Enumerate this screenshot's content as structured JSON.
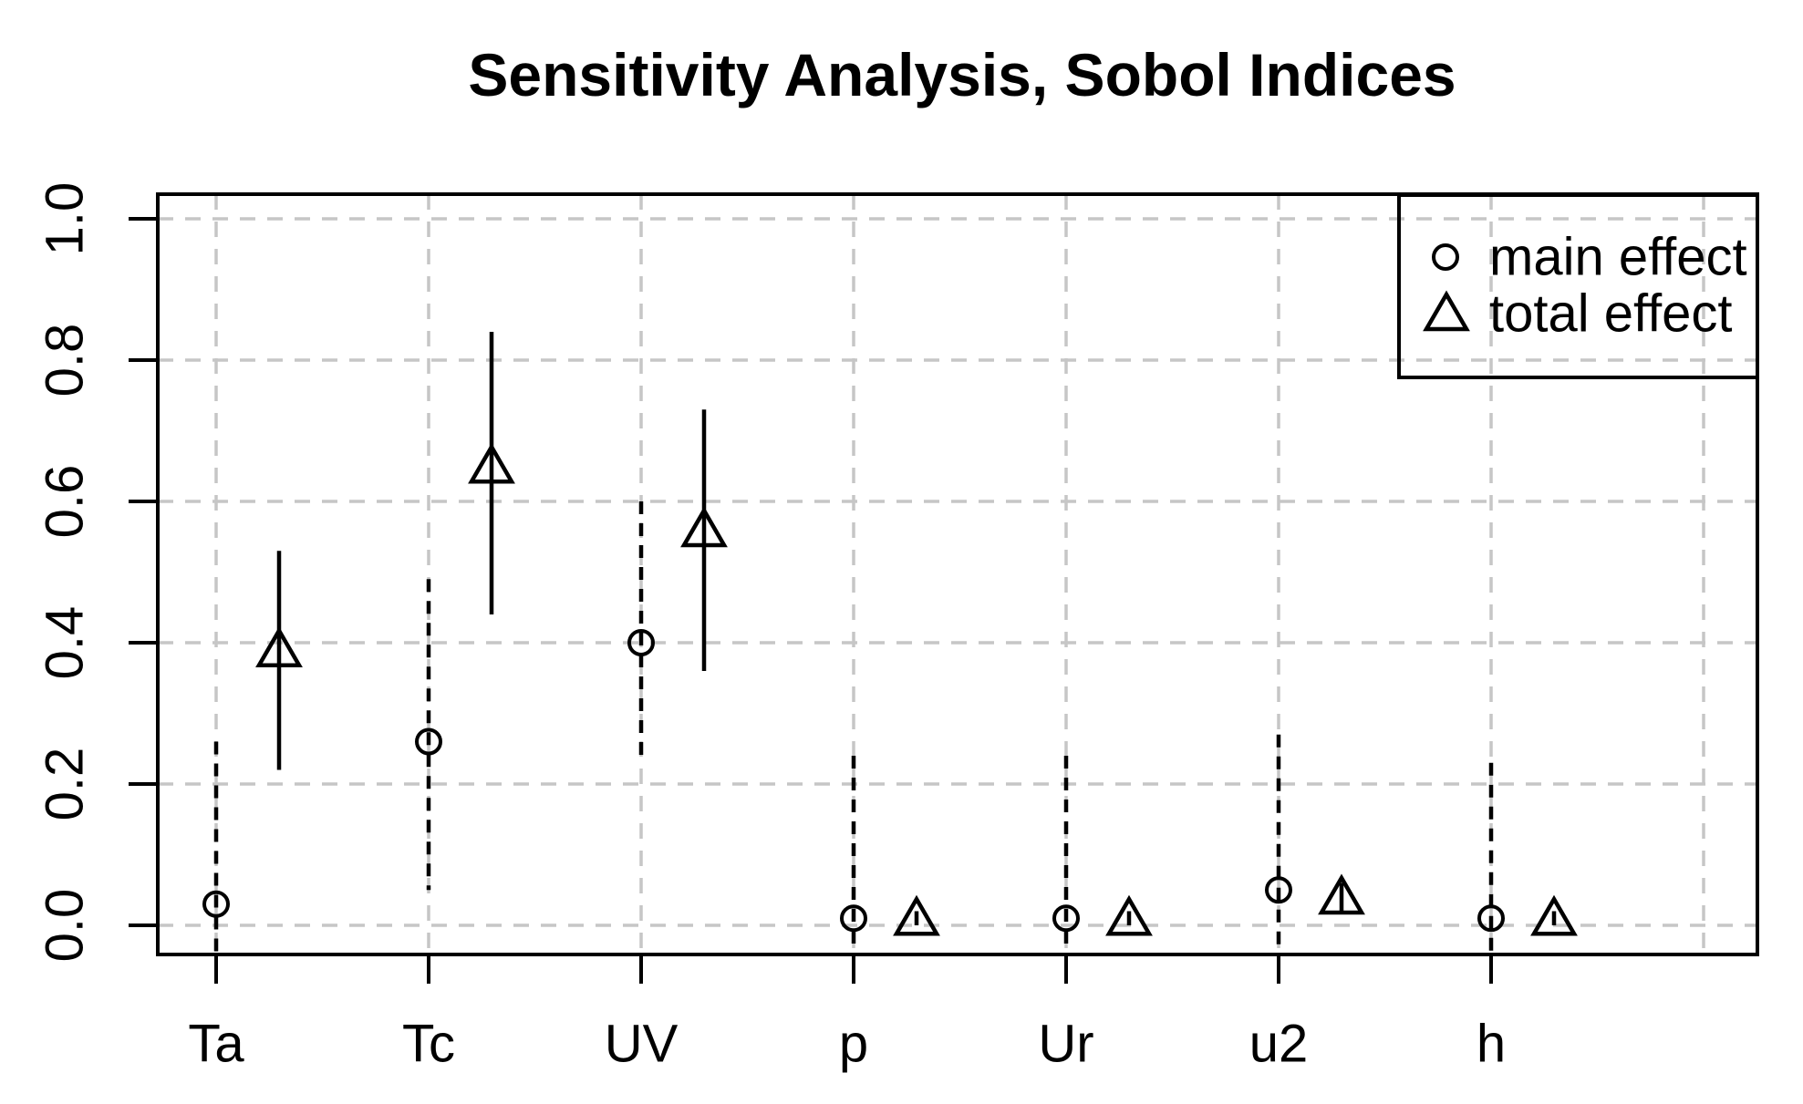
{
  "chart_data": {
    "type": "scatter",
    "title": "Sensitivity Analysis, Sobol Indices",
    "xlabel": "",
    "ylabel": "",
    "categories": [
      "Ta",
      "Tc",
      "UV",
      "p",
      "Ur",
      "u2",
      "h"
    ],
    "ylim": [
      0.0,
      1.0
    ],
    "yticks": [
      0.0,
      0.2,
      0.4,
      0.6,
      0.8,
      1.0
    ],
    "ytick_labels": [
      "0.0",
      "0.2",
      "0.4",
      "0.6",
      "0.8",
      "1.0"
    ],
    "grid": "dashed gray, horizontal at yticks and vertical at categories",
    "extra_right_gridline": true,
    "legend": {
      "position": "top-right",
      "entries": [
        {
          "marker": "circle",
          "label": "main effect"
        },
        {
          "marker": "triangle",
          "label": "total effect"
        }
      ]
    },
    "series": [
      {
        "name": "main effect",
        "marker": "circle",
        "ci_line_style": "dashed",
        "values": [
          0.03,
          0.26,
          0.4,
          0.01,
          0.01,
          0.05,
          0.01
        ],
        "ci_low": [
          -0.04,
          0.05,
          0.23,
          -0.04,
          -0.04,
          -0.04,
          -0.04
        ],
        "ci_high": [
          0.26,
          0.49,
          0.6,
          0.24,
          0.24,
          0.27,
          0.23
        ]
      },
      {
        "name": "total effect",
        "marker": "triangle",
        "ci_line_style": "solid",
        "values": [
          0.39,
          0.65,
          0.56,
          0.01,
          0.01,
          0.04,
          0.01
        ],
        "ci_low": [
          0.22,
          0.44,
          0.36,
          0.0,
          0.0,
          0.02,
          0.0
        ],
        "ci_high": [
          0.53,
          0.84,
          0.73,
          0.02,
          0.02,
          0.06,
          0.02
        ]
      }
    ],
    "colors": {
      "foreground": "#000000",
      "gridline": "#c6c6c6",
      "background": "#ffffff"
    }
  }
}
